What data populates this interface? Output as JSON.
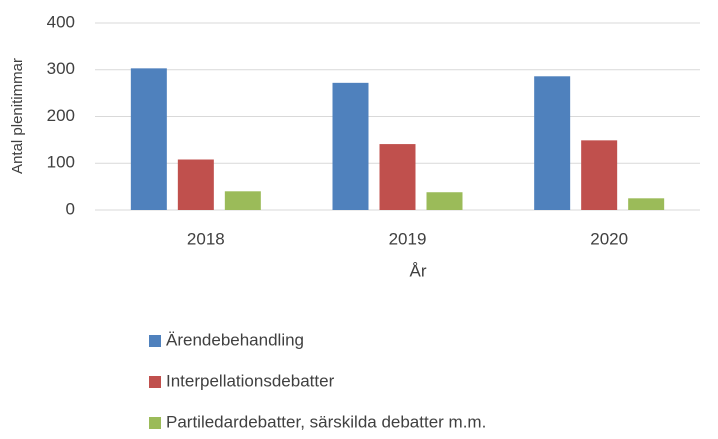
{
  "chart_data": {
    "type": "bar",
    "categories": [
      "2018",
      "2019",
      "2020"
    ],
    "series": [
      {
        "name": "Ärendebehandling",
        "color": "#4f81bd",
        "values": [
          303,
          272,
          286
        ]
      },
      {
        "name": "Interpellationsdebatter",
        "color": "#c0504d",
        "values": [
          108,
          141,
          149
        ]
      },
      {
        "name": "Partiledardebatter, särskilda debatter m.m.",
        "color": "#9bbb59",
        "values": [
          40,
          38,
          25
        ]
      }
    ],
    "xlabel": "År",
    "ylabel": "Antal plenitimmar",
    "ylim": [
      0,
      400
    ],
    "yticks": [
      0,
      100,
      200,
      300,
      400
    ],
    "grid": true,
    "legend": "bottom"
  }
}
